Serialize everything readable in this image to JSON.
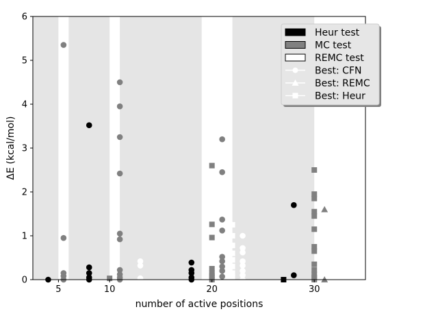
{
  "chart_data": {
    "type": "scatter",
    "xlabel": "number of active positions",
    "ylabel": "ΔE (kcal/mol)",
    "xlim": [
      2.5,
      35
    ],
    "ylim": [
      0,
      6
    ],
    "xticks": [
      "5",
      "10",
      "20",
      "30"
    ],
    "xtick_values": [
      5,
      10,
      20,
      30
    ],
    "yticks": [
      "0",
      "1",
      "2",
      "3",
      "4",
      "5",
      "6"
    ],
    "ytick_values": [
      0,
      1,
      2,
      3,
      4,
      5,
      6
    ],
    "background_bands": [
      [
        2.5,
        5
      ],
      [
        6,
        10
      ],
      [
        11,
        19
      ],
      [
        22,
        30
      ]
    ],
    "legend_position": "top-right",
    "series": [
      {
        "name": "Heur test",
        "marker": "circle",
        "color": "#000000",
        "points": [
          [
            4,
            0.0
          ],
          [
            8,
            3.52
          ],
          [
            8,
            0.28
          ],
          [
            8,
            0.15
          ],
          [
            8,
            0.05
          ],
          [
            8,
            0.0
          ],
          [
            18,
            0.39
          ],
          [
            18,
            0.22
          ],
          [
            18,
            0.15
          ],
          [
            18,
            0.05
          ],
          [
            18,
            0.0
          ],
          [
            28,
            1.7
          ],
          [
            28,
            0.1
          ]
        ]
      },
      {
        "name": "Heur test square",
        "marker": "square",
        "color": "#000000",
        "points": [
          [
            27,
            0.0
          ]
        ]
      },
      {
        "name": "MC test",
        "marker": "circle",
        "color": "#808080",
        "points": [
          [
            5.5,
            5.35
          ],
          [
            5.5,
            0.95
          ],
          [
            5.5,
            0.15
          ],
          [
            5.5,
            0.08
          ],
          [
            5.5,
            0.0
          ],
          [
            11,
            4.5
          ],
          [
            11,
            3.95
          ],
          [
            11,
            3.25
          ],
          [
            11,
            2.42
          ],
          [
            11,
            1.05
          ],
          [
            11,
            0.92
          ],
          [
            11,
            0.22
          ],
          [
            11,
            0.12
          ],
          [
            11,
            0.05
          ],
          [
            11,
            0.0
          ],
          [
            21,
            3.2
          ],
          [
            21,
            2.45
          ],
          [
            21,
            1.37
          ],
          [
            21,
            1.12
          ],
          [
            21,
            0.52
          ],
          [
            21,
            0.42
          ],
          [
            21,
            0.3
          ],
          [
            21,
            0.2
          ],
          [
            21,
            0.07
          ]
        ]
      },
      {
        "name": "MC test squares",
        "marker": "square",
        "color": "#808080",
        "points": [
          [
            10,
            0.03
          ],
          [
            20,
            2.6
          ],
          [
            20,
            1.26
          ],
          [
            20,
            0.96
          ],
          [
            20,
            0.25
          ],
          [
            20,
            0.15
          ],
          [
            20,
            0.1
          ],
          [
            20,
            0.05
          ],
          [
            20,
            0.0
          ],
          [
            30,
            2.5
          ],
          [
            30,
            1.95
          ],
          [
            30,
            1.85
          ],
          [
            30,
            1.55
          ],
          [
            30,
            1.45
          ],
          [
            30,
            1.15
          ],
          [
            30,
            0.75
          ],
          [
            30,
            0.65
          ],
          [
            30,
            0.35
          ],
          [
            30,
            0.22
          ],
          [
            30,
            0.12
          ],
          [
            30,
            0.05
          ],
          [
            30,
            0.0
          ]
        ]
      },
      {
        "name": "MC test triangles",
        "marker": "triangle",
        "color": "#808080",
        "points": [
          [
            31,
            1.6
          ],
          [
            31,
            0.0
          ]
        ]
      },
      {
        "name": "REMC test",
        "marker": "circle",
        "color": "#ffffff",
        "points": [
          [
            13,
            0.42
          ],
          [
            13,
            0.32
          ],
          [
            13,
            0.03
          ],
          [
            23,
            1.0
          ],
          [
            23,
            0.72
          ],
          [
            23,
            0.62
          ],
          [
            23,
            0.42
          ],
          [
            23,
            0.32
          ],
          [
            23,
            0.2
          ],
          [
            23,
            0.1
          ],
          [
            23,
            0.0
          ]
        ]
      },
      {
        "name": "REMC test squares",
        "marker": "square",
        "color": "#ffffff",
        "points": [
          [
            22,
            1.25
          ],
          [
            22,
            1.0
          ],
          [
            22,
            0.78
          ],
          [
            22,
            0.6
          ],
          [
            22,
            0.45
          ],
          [
            22,
            0.3
          ],
          [
            22,
            0.15
          ],
          [
            22,
            0.05
          ]
        ]
      }
    ],
    "legend": [
      {
        "label": "Heur test",
        "kind": "patch",
        "fill": "#000000"
      },
      {
        "label": "MC test",
        "kind": "patch",
        "fill": "#808080"
      },
      {
        "label": "REMC test",
        "kind": "patch",
        "fill": "#ffffff"
      },
      {
        "label": "Best: CFN",
        "kind": "line",
        "marker": "circle"
      },
      {
        "label": "Best: REMC",
        "kind": "line",
        "marker": "triangle"
      },
      {
        "label": "Best: Heur",
        "kind": "line",
        "marker": "square"
      }
    ]
  }
}
